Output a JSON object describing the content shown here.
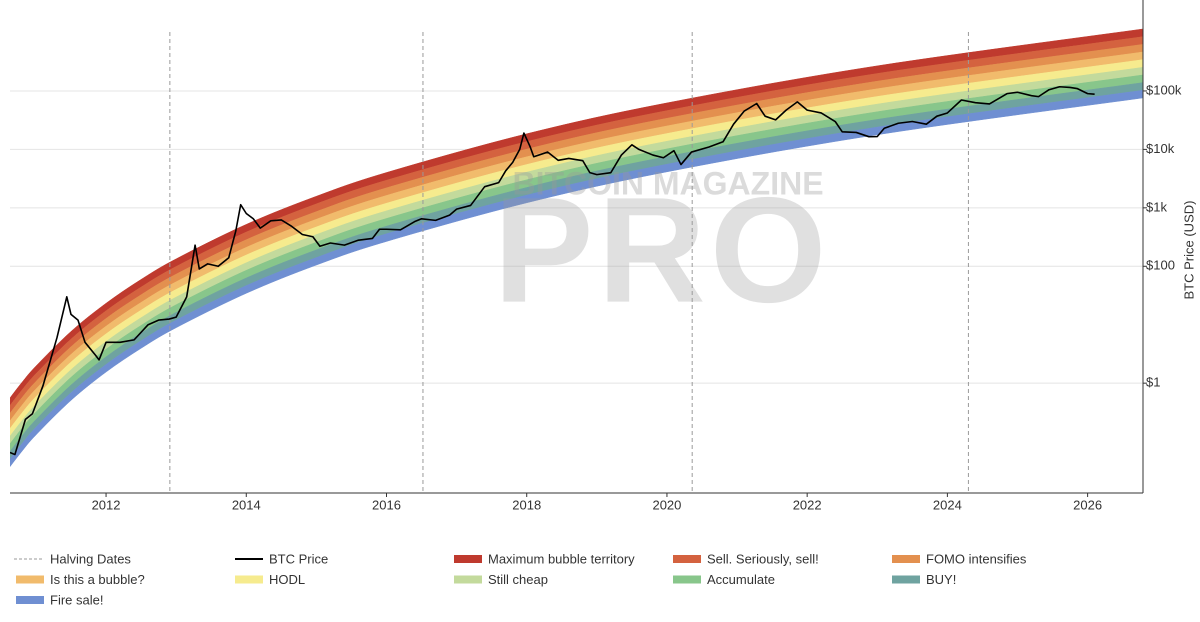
{
  "chart_data": {
    "type": "line",
    "y_scale": "log",
    "ylabel": "BTC Price (USD)",
    "xlim": [
      2010.63,
      2026.79
    ],
    "ylim": [
      0.0132,
      3600000
    ],
    "xticks": [
      2012,
      2014,
      2016,
      2018,
      2020,
      2022,
      2024,
      2026
    ],
    "yticks": [
      {
        "value": 1,
        "label": "$1"
      },
      {
        "value": 100,
        "label": "$100"
      },
      {
        "value": 1000,
        "label": "$1k"
      },
      {
        "value": 10000,
        "label": "$10k"
      },
      {
        "value": 100000,
        "label": "$100k"
      }
    ],
    "grid": true,
    "watermark": {
      "text": "BITCOIN MAGAZINE",
      "logo": "PRO"
    },
    "halving": {
      "name": "Halving Dates",
      "color": "#9a9a9a",
      "x": [
        2012.91,
        2016.52,
        2020.36,
        2024.3
      ]
    },
    "series": [
      {
        "name": "BTC Price",
        "color": "#000000",
        "x": [
          2010.63,
          2010.7,
          2010.85,
          2010.95,
          2011.1,
          2011.3,
          2011.44,
          2011.5,
          2011.6,
          2011.7,
          2011.85,
          2011.9,
          2012.0,
          2012.2,
          2012.4,
          2012.6,
          2012.75,
          2012.9,
          2013.0,
          2013.15,
          2013.27,
          2013.33,
          2013.45,
          2013.6,
          2013.75,
          2013.85,
          2013.92,
          2014.0,
          2014.1,
          2014.2,
          2014.35,
          2014.5,
          2014.65,
          2014.8,
          2014.95,
          2015.05,
          2015.2,
          2015.4,
          2015.6,
          2015.8,
          2015.9,
          2016.0,
          2016.2,
          2016.4,
          2016.5,
          2016.7,
          2016.9,
          2017.0,
          2017.2,
          2017.4,
          2017.6,
          2017.7,
          2017.8,
          2017.9,
          2017.96,
          2018.05,
          2018.1,
          2018.3,
          2018.45,
          2018.6,
          2018.8,
          2018.9,
          2019.0,
          2019.2,
          2019.35,
          2019.5,
          2019.6,
          2019.8,
          2019.95,
          2020.1,
          2020.2,
          2020.35,
          2020.6,
          2020.8,
          2020.95,
          2021.1,
          2021.28,
          2021.4,
          2021.55,
          2021.7,
          2021.86,
          2022.0,
          2022.2,
          2022.4,
          2022.5,
          2022.7,
          2022.88,
          2023.0,
          2023.1,
          2023.3,
          2023.5,
          2023.7,
          2023.85,
          2024.0,
          2024.2,
          2024.4,
          2024.6,
          2024.85,
          2025.0,
          2025.2,
          2025.3,
          2025.45,
          2025.6,
          2025.75,
          2025.85,
          2026.0,
          2026.1
        ],
        "values": [
          0.065,
          0.06,
          0.24,
          0.3,
          0.9,
          6,
          30,
          15,
          12,
          5,
          3,
          2.5,
          5,
          5,
          5.5,
          10,
          12,
          12.5,
          13.5,
          30,
          230,
          90,
          110,
          100,
          140,
          400,
          1130,
          800,
          650,
          450,
          600,
          620,
          480,
          350,
          320,
          220,
          250,
          230,
          280,
          300,
          430,
          430,
          420,
          580,
          650,
          610,
          750,
          950,
          1100,
          2300,
          2700,
          4300,
          6000,
          10000,
          19000,
          11000,
          7500,
          9000,
          6500,
          7000,
          6400,
          4000,
          3700,
          4000,
          8000,
          12000,
          10000,
          8000,
          7200,
          9500,
          5500,
          9000,
          11000,
          13500,
          27000,
          45000,
          61000,
          37000,
          32000,
          47000,
          65000,
          47000,
          42000,
          30000,
          20000,
          19500,
          16500,
          16600,
          23000,
          28000,
          30000,
          27000,
          37000,
          42000,
          70000,
          63000,
          60000,
          90000,
          95000,
          83000,
          80000,
          105000,
          118000,
          115000,
          110000,
          90000,
          88000
        ]
      }
    ],
    "band_x": [
      2010.63,
      2010.8,
      2011,
      2011.5,
      2012,
      2012.5,
      2013,
      2014,
      2015,
      2016,
      2018,
      2020,
      2023,
      2026.79
    ],
    "band_floor": [
      0.0372,
      0.0682,
      0.13,
      0.508,
      1.55,
      3.95,
      8.89,
      34.5,
      105,
      266,
      1220,
      4130,
      17800,
      76000
    ],
    "bands": [
      {
        "name": "Maximum bubble territory",
        "color": "#bf3a2e",
        "values": [
          0.561,
          1.03,
          1.96,
          7.67,
          23.3,
          59.6,
          134,
          521,
          1580,
          4020,
          18500,
          62400,
          269000,
          1150000
        ]
      },
      {
        "name": "Sell. Seriously, sell!",
        "color": "#d4623f",
        "values": [
          0.415,
          0.762,
          1.45,
          5.68,
          17.3,
          44.1,
          99.3,
          385,
          1170,
          2970,
          13600,
          46100,
          199000,
          849000
        ]
      },
      {
        "name": "FOMO intensifies",
        "color": "#e3904f",
        "values": [
          0.307,
          0.564,
          1.07,
          4.2,
          12.8,
          32.6,
          73.4,
          285,
          863,
          2200,
          10100,
          34100,
          147000,
          628000
        ]
      },
      {
        "name": "Is this a bubble?",
        "color": "#f1bb6c",
        "values": [
          0.227,
          0.417,
          0.794,
          3.11,
          9.44,
          24.1,
          54.3,
          211,
          639,
          1630,
          7470,
          25200,
          109000,
          465000
        ]
      },
      {
        "name": "HODL",
        "color": "#f6eb8e",
        "values": [
          0.168,
          0.308,
          0.587,
          2.3,
          6.98,
          17.8,
          40.2,
          156,
          472,
          1200,
          5520,
          18700,
          80500,
          344000
        ]
      },
      {
        "name": "Still cheap",
        "color": "#c3da9c",
        "values": [
          0.124,
          0.228,
          0.434,
          1.7,
          5.16,
          13.2,
          29.7,
          115,
          349,
          889,
          4080,
          13800,
          59600,
          254000
        ]
      },
      {
        "name": "Accumulate",
        "color": "#88c68b",
        "values": [
          0.0918,
          0.169,
          0.321,
          1.26,
          3.82,
          9.75,
          22.0,
          85.3,
          258,
          658,
          3020,
          10200,
          44100,
          188000
        ]
      },
      {
        "name": "BUY!",
        "color": "#6fa3a0",
        "values": [
          0.0679,
          0.125,
          0.238,
          0.929,
          2.82,
          7.21,
          16.3,
          63.1,
          191,
          486,
          2230,
          7550,
          32600,
          139000
        ]
      },
      {
        "name": "Fire sale!",
        "color": "#6f8fd2",
        "values": [
          0.0502,
          0.0922,
          0.176,
          0.687,
          2.09,
          5.33,
          12.0,
          46.7,
          141,
          360,
          1650,
          5580,
          24100,
          103000
        ]
      }
    ]
  }
}
